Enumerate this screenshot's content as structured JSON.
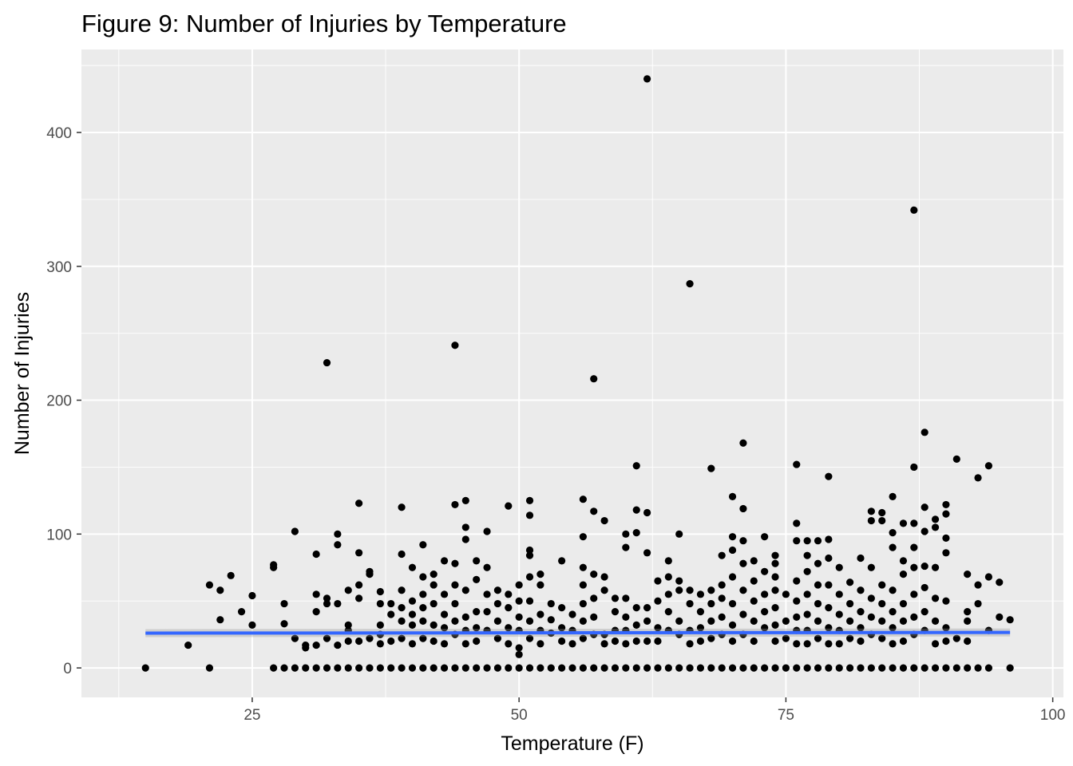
{
  "chart_data": {
    "type": "scatter",
    "title": "Figure 9: Number of Injuries by Temperature",
    "xlabel": "Temperature (F)",
    "ylabel": "Number of Injuries",
    "xlim": [
      9,
      101
    ],
    "ylim": [
      -22,
      462
    ],
    "x_ticks": [
      25,
      50,
      75,
      100
    ],
    "y_ticks": [
      0,
      100,
      200,
      300,
      400
    ],
    "x_tick_labels": [
      "25",
      "50",
      "75",
      "100"
    ],
    "y_tick_labels": [
      "0",
      "100",
      "200",
      "300",
      "400"
    ],
    "grid": true,
    "background_color": "#ebebeb",
    "point_color": "#000000",
    "trend_color": "#3366ff",
    "trend_line": {
      "x": [
        15,
        96
      ],
      "y": [
        26,
        26.5
      ]
    },
    "points": [
      [
        15,
        0
      ],
      [
        19,
        17
      ],
      [
        21,
        62
      ],
      [
        21,
        0
      ],
      [
        22,
        58
      ],
      [
        22,
        36
      ],
      [
        23,
        69
      ],
      [
        24,
        42
      ],
      [
        25,
        54
      ],
      [
        25,
        32
      ],
      [
        27,
        77
      ],
      [
        27,
        75
      ],
      [
        27,
        0
      ],
      [
        28,
        48
      ],
      [
        28,
        33
      ],
      [
        28,
        0
      ],
      [
        29,
        102
      ],
      [
        29,
        22
      ],
      [
        29,
        0
      ],
      [
        30,
        17
      ],
      [
        30,
        15
      ],
      [
        30,
        0
      ],
      [
        31,
        85
      ],
      [
        31,
        55
      ],
      [
        31,
        42
      ],
      [
        31,
        17
      ],
      [
        31,
        0
      ],
      [
        32,
        228
      ],
      [
        32,
        52
      ],
      [
        32,
        48
      ],
      [
        32,
        22
      ],
      [
        32,
        0
      ],
      [
        33,
        100
      ],
      [
        33,
        92
      ],
      [
        33,
        48
      ],
      [
        33,
        17
      ],
      [
        33,
        0
      ],
      [
        34,
        58
      ],
      [
        34,
        32
      ],
      [
        34,
        28
      ],
      [
        34,
        20
      ],
      [
        34,
        0
      ],
      [
        35,
        123
      ],
      [
        35,
        86
      ],
      [
        35,
        62
      ],
      [
        35,
        52
      ],
      [
        35,
        20
      ],
      [
        35,
        0
      ],
      [
        36,
        72
      ],
      [
        36,
        70
      ],
      [
        36,
        22
      ],
      [
        36,
        0
      ],
      [
        37,
        57
      ],
      [
        37,
        48
      ],
      [
        37,
        32
      ],
      [
        37,
        25
      ],
      [
        37,
        18
      ],
      [
        37,
        0
      ],
      [
        38,
        48
      ],
      [
        38,
        40
      ],
      [
        38,
        20
      ],
      [
        38,
        0
      ],
      [
        39,
        120
      ],
      [
        39,
        85
      ],
      [
        39,
        58
      ],
      [
        39,
        45
      ],
      [
        39,
        35
      ],
      [
        39,
        22
      ],
      [
        39,
        0
      ],
      [
        40,
        75
      ],
      [
        40,
        50
      ],
      [
        40,
        40
      ],
      [
        40,
        32
      ],
      [
        40,
        18
      ],
      [
        40,
        0
      ],
      [
        41,
        92
      ],
      [
        41,
        68
      ],
      [
        41,
        55
      ],
      [
        41,
        45
      ],
      [
        41,
        35
      ],
      [
        41,
        22
      ],
      [
        41,
        0
      ],
      [
        42,
        70
      ],
      [
        42,
        62
      ],
      [
        42,
        48
      ],
      [
        42,
        32
      ],
      [
        42,
        20
      ],
      [
        42,
        0
      ],
      [
        43,
        80
      ],
      [
        43,
        55
      ],
      [
        43,
        40
      ],
      [
        43,
        30
      ],
      [
        43,
        18
      ],
      [
        43,
        0
      ],
      [
        44,
        241
      ],
      [
        44,
        122
      ],
      [
        44,
        78
      ],
      [
        44,
        62
      ],
      [
        44,
        48
      ],
      [
        44,
        35
      ],
      [
        44,
        25
      ],
      [
        44,
        0
      ],
      [
        45,
        125
      ],
      [
        45,
        105
      ],
      [
        45,
        96
      ],
      [
        45,
        58
      ],
      [
        45,
        38
      ],
      [
        45,
        28
      ],
      [
        45,
        18
      ],
      [
        45,
        0
      ],
      [
        46,
        80
      ],
      [
        46,
        66
      ],
      [
        46,
        42
      ],
      [
        46,
        30
      ],
      [
        46,
        20
      ],
      [
        46,
        0
      ],
      [
        47,
        102
      ],
      [
        47,
        75
      ],
      [
        47,
        55
      ],
      [
        47,
        42
      ],
      [
        47,
        28
      ],
      [
        47,
        0
      ],
      [
        48,
        58
      ],
      [
        48,
        48
      ],
      [
        48,
        35
      ],
      [
        48,
        22
      ],
      [
        48,
        0
      ],
      [
        49,
        121
      ],
      [
        49,
        55
      ],
      [
        49,
        45
      ],
      [
        49,
        30
      ],
      [
        49,
        18
      ],
      [
        49,
        0
      ],
      [
        50,
        62
      ],
      [
        50,
        50
      ],
      [
        50,
        38
      ],
      [
        50,
        28
      ],
      [
        50,
        15
      ],
      [
        50,
        10
      ],
      [
        50,
        0
      ],
      [
        51,
        125
      ],
      [
        51,
        114
      ],
      [
        51,
        88
      ],
      [
        51,
        84
      ],
      [
        51,
        68
      ],
      [
        51,
        50
      ],
      [
        51,
        35
      ],
      [
        51,
        22
      ],
      [
        51,
        0
      ],
      [
        52,
        70
      ],
      [
        52,
        62
      ],
      [
        52,
        40
      ],
      [
        52,
        28
      ],
      [
        52,
        18
      ],
      [
        52,
        0
      ],
      [
        53,
        48
      ],
      [
        53,
        36
      ],
      [
        53,
        26
      ],
      [
        53,
        0
      ],
      [
        54,
        80
      ],
      [
        54,
        45
      ],
      [
        54,
        30
      ],
      [
        54,
        20
      ],
      [
        54,
        0
      ],
      [
        55,
        40
      ],
      [
        55,
        28
      ],
      [
        55,
        18
      ],
      [
        55,
        0
      ],
      [
        56,
        126
      ],
      [
        56,
        98
      ],
      [
        56,
        75
      ],
      [
        56,
        62
      ],
      [
        56,
        48
      ],
      [
        56,
        35
      ],
      [
        56,
        22
      ],
      [
        56,
        0
      ],
      [
        57,
        216
      ],
      [
        57,
        117
      ],
      [
        57,
        70
      ],
      [
        57,
        52
      ],
      [
        57,
        38
      ],
      [
        57,
        25
      ],
      [
        57,
        0
      ],
      [
        58,
        110
      ],
      [
        58,
        68
      ],
      [
        58,
        58
      ],
      [
        58,
        25
      ],
      [
        58,
        18
      ],
      [
        58,
        0
      ],
      [
        59,
        52
      ],
      [
        59,
        42
      ],
      [
        59,
        28
      ],
      [
        59,
        20
      ],
      [
        59,
        0
      ],
      [
        60,
        100
      ],
      [
        60,
        90
      ],
      [
        60,
        52
      ],
      [
        60,
        38
      ],
      [
        60,
        28
      ],
      [
        60,
        18
      ],
      [
        60,
        0
      ],
      [
        61,
        151
      ],
      [
        61,
        118
      ],
      [
        61,
        101
      ],
      [
        61,
        45
      ],
      [
        61,
        32
      ],
      [
        61,
        20
      ],
      [
        61,
        0
      ],
      [
        62,
        440
      ],
      [
        62,
        116
      ],
      [
        62,
        86
      ],
      [
        62,
        45
      ],
      [
        62,
        35
      ],
      [
        62,
        20
      ],
      [
        62,
        0
      ],
      [
        63,
        65
      ],
      [
        63,
        50
      ],
      [
        63,
        30
      ],
      [
        63,
        20
      ],
      [
        63,
        0
      ],
      [
        64,
        80
      ],
      [
        64,
        68
      ],
      [
        64,
        55
      ],
      [
        64,
        42
      ],
      [
        64,
        28
      ],
      [
        64,
        0
      ],
      [
        65,
        100
      ],
      [
        65,
        65
      ],
      [
        65,
        58
      ],
      [
        65,
        35
      ],
      [
        65,
        25
      ],
      [
        65,
        0
      ],
      [
        66,
        287
      ],
      [
        66,
        58
      ],
      [
        66,
        48
      ],
      [
        66,
        28
      ],
      [
        66,
        18
      ],
      [
        66,
        0
      ],
      [
        67,
        55
      ],
      [
        67,
        42
      ],
      [
        67,
        30
      ],
      [
        67,
        20
      ],
      [
        67,
        0
      ],
      [
        68,
        149
      ],
      [
        68,
        58
      ],
      [
        68,
        48
      ],
      [
        68,
        35
      ],
      [
        68,
        22
      ],
      [
        68,
        0
      ],
      [
        69,
        84
      ],
      [
        69,
        62
      ],
      [
        69,
        52
      ],
      [
        69,
        38
      ],
      [
        69,
        25
      ],
      [
        69,
        0
      ],
      [
        70,
        128
      ],
      [
        70,
        98
      ],
      [
        70,
        88
      ],
      [
        70,
        68
      ],
      [
        70,
        48
      ],
      [
        70,
        32
      ],
      [
        70,
        20
      ],
      [
        70,
        0
      ],
      [
        71,
        168
      ],
      [
        71,
        119
      ],
      [
        71,
        95
      ],
      [
        71,
        78
      ],
      [
        71,
        58
      ],
      [
        71,
        40
      ],
      [
        71,
        25
      ],
      [
        71,
        0
      ],
      [
        72,
        80
      ],
      [
        72,
        65
      ],
      [
        72,
        50
      ],
      [
        72,
        35
      ],
      [
        72,
        20
      ],
      [
        72,
        0
      ],
      [
        73,
        98
      ],
      [
        73,
        72
      ],
      [
        73,
        55
      ],
      [
        73,
        42
      ],
      [
        73,
        30
      ],
      [
        73,
        0
      ],
      [
        74,
        84
      ],
      [
        74,
        78
      ],
      [
        74,
        68
      ],
      [
        74,
        58
      ],
      [
        74,
        45
      ],
      [
        74,
        32
      ],
      [
        74,
        20
      ],
      [
        74,
        0
      ],
      [
        75,
        55
      ],
      [
        75,
        35
      ],
      [
        75,
        22
      ],
      [
        75,
        0
      ],
      [
        76,
        152
      ],
      [
        76,
        108
      ],
      [
        76,
        95
      ],
      [
        76,
        65
      ],
      [
        76,
        50
      ],
      [
        76,
        38
      ],
      [
        76,
        28
      ],
      [
        76,
        18
      ],
      [
        76,
        0
      ],
      [
        77,
        95
      ],
      [
        77,
        84
      ],
      [
        77,
        72
      ],
      [
        77,
        55
      ],
      [
        77,
        40
      ],
      [
        77,
        28
      ],
      [
        77,
        18
      ],
      [
        77,
        0
      ],
      [
        78,
        95
      ],
      [
        78,
        78
      ],
      [
        78,
        62
      ],
      [
        78,
        48
      ],
      [
        78,
        35
      ],
      [
        78,
        22
      ],
      [
        78,
        0
      ],
      [
        79,
        143
      ],
      [
        79,
        96
      ],
      [
        79,
        82
      ],
      [
        79,
        62
      ],
      [
        79,
        45
      ],
      [
        79,
        30
      ],
      [
        79,
        18
      ],
      [
        79,
        0
      ],
      [
        80,
        75
      ],
      [
        80,
        55
      ],
      [
        80,
        40
      ],
      [
        80,
        28
      ],
      [
        80,
        18
      ],
      [
        80,
        0
      ],
      [
        81,
        64
      ],
      [
        81,
        48
      ],
      [
        81,
        35
      ],
      [
        81,
        22
      ],
      [
        81,
        0
      ],
      [
        82,
        82
      ],
      [
        82,
        58
      ],
      [
        82,
        42
      ],
      [
        82,
        30
      ],
      [
        82,
        20
      ],
      [
        82,
        0
      ],
      [
        83,
        117
      ],
      [
        83,
        110
      ],
      [
        83,
        75
      ],
      [
        83,
        52
      ],
      [
        83,
        38
      ],
      [
        83,
        25
      ],
      [
        83,
        0
      ],
      [
        84,
        116
      ],
      [
        84,
        110
      ],
      [
        84,
        62
      ],
      [
        84,
        48
      ],
      [
        84,
        35
      ],
      [
        84,
        22
      ],
      [
        84,
        0
      ],
      [
        85,
        128
      ],
      [
        85,
        101
      ],
      [
        85,
        90
      ],
      [
        85,
        58
      ],
      [
        85,
        42
      ],
      [
        85,
        30
      ],
      [
        85,
        18
      ],
      [
        85,
        0
      ],
      [
        86,
        108
      ],
      [
        86,
        80
      ],
      [
        86,
        70
      ],
      [
        86,
        48
      ],
      [
        86,
        35
      ],
      [
        86,
        20
      ],
      [
        86,
        0
      ],
      [
        87,
        342
      ],
      [
        87,
        150
      ],
      [
        87,
        108
      ],
      [
        87,
        90
      ],
      [
        87,
        75
      ],
      [
        87,
        55
      ],
      [
        87,
        38
      ],
      [
        87,
        25
      ],
      [
        87,
        0
      ],
      [
        88,
        176
      ],
      [
        88,
        120
      ],
      [
        88,
        102
      ],
      [
        88,
        76
      ],
      [
        88,
        60
      ],
      [
        88,
        42
      ],
      [
        88,
        28
      ],
      [
        88,
        0
      ],
      [
        89,
        111
      ],
      [
        89,
        105
      ],
      [
        89,
        75
      ],
      [
        89,
        52
      ],
      [
        89,
        35
      ],
      [
        89,
        18
      ],
      [
        89,
        0
      ],
      [
        90,
        122
      ],
      [
        90,
        115
      ],
      [
        90,
        97
      ],
      [
        90,
        86
      ],
      [
        90,
        50
      ],
      [
        90,
        30
      ],
      [
        90,
        20
      ],
      [
        90,
        0
      ],
      [
        91,
        156
      ],
      [
        91,
        22
      ],
      [
        91,
        0
      ],
      [
        92,
        70
      ],
      [
        92,
        42
      ],
      [
        92,
        35
      ],
      [
        92,
        20
      ],
      [
        92,
        0
      ],
      [
        93,
        142
      ],
      [
        93,
        62
      ],
      [
        93,
        48
      ],
      [
        93,
        0
      ],
      [
        94,
        151
      ],
      [
        94,
        68
      ],
      [
        94,
        28
      ],
      [
        94,
        0
      ],
      [
        95,
        64
      ],
      [
        95,
        38
      ],
      [
        96,
        36
      ],
      [
        96,
        0
      ]
    ]
  }
}
